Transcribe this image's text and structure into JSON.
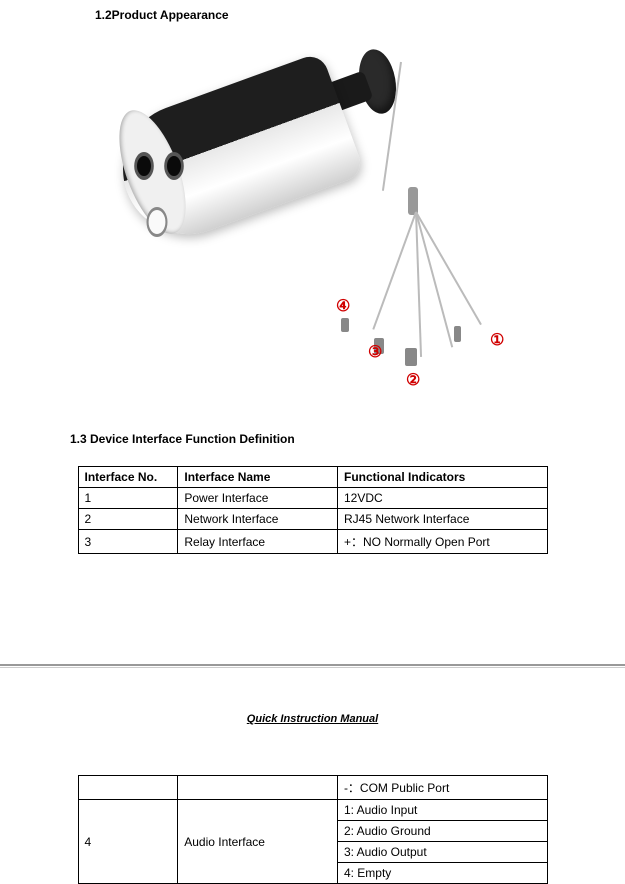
{
  "section12_heading": "1.2Product Appearance",
  "callouts": {
    "n1": "①",
    "n2": "②",
    "n3": "③",
    "n4": "④"
  },
  "section13_heading": "1.3   Device Interface Function Definition",
  "table1": {
    "headers": {
      "no": "Interface No.",
      "name": "Interface Name",
      "func": "Functional Indicators"
    },
    "rows": [
      {
        "no": "1",
        "name": "Power Interface",
        "func": "12VDC"
      },
      {
        "no": "2",
        "name": "Network Interface",
        "func": "RJ45 Network Interface"
      },
      {
        "no": "3",
        "name": "Relay Interface",
        "func": "+：NO Normally Open Port"
      }
    ]
  },
  "manual_title": "Quick Instruction Manual",
  "table2": {
    "com_row": "-：COM Public Port",
    "audio_no": "4",
    "audio_name": "Audio Interface",
    "audio_rows": [
      "1: Audio Input",
      "2: Audio Ground",
      "3: Audio Output",
      "4: Empty"
    ]
  },
  "colors": {
    "callout": "#d00000",
    "text": "#000000",
    "bg": "#ffffff"
  }
}
